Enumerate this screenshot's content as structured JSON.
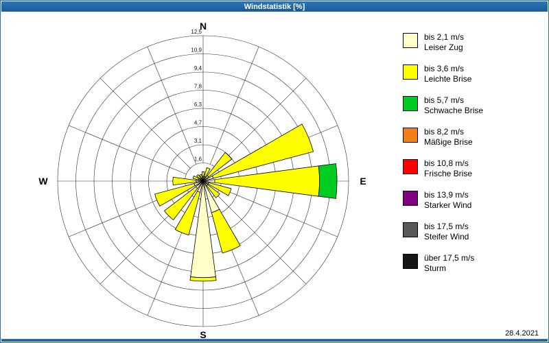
{
  "window": {
    "title": "Windstatistik [%]",
    "date": "28.4.2021"
  },
  "legend": {
    "items": [
      {
        "speed": "bis 2,1 m/s",
        "desc": "Leiser Zug",
        "color": "#ffffc8"
      },
      {
        "speed": "bis 3,6 m/s",
        "desc": "Leichte Brise",
        "color": "#ffff00"
      },
      {
        "speed": "bis 5,7 m/s",
        "desc": "Schwache Brise",
        "color": "#00cc22"
      },
      {
        "speed": "bis 8,2 m/s",
        "desc": "Mäßige Brise",
        "color": "#f08018"
      },
      {
        "speed": "bis 10,8 m/s",
        "desc": "Frische Brise",
        "color": "#ff0000"
      },
      {
        "speed": "bis 13,9 m/s",
        "desc": "Starker Wind",
        "color": "#800080"
      },
      {
        "speed": "bis 17,5 m/s",
        "desc": "Steifer Wind",
        "color": "#585858"
      },
      {
        "speed": "über 17,5 m/s",
        "desc": "Sturm",
        "color": "#161616"
      }
    ]
  },
  "chart_data": {
    "type": "bar",
    "polar": true,
    "title": "Windstatistik [%]",
    "units": "%",
    "rlim": [
      0,
      12.5
    ],
    "rings": [
      1.6,
      3.1,
      4.7,
      6.3,
      7.8,
      9.4,
      10.9,
      12.5
    ],
    "ring_labels": [
      "1,6",
      "3,1",
      "4,7",
      "6,3",
      "7,8",
      "9,4",
      "10,9",
      "12,5"
    ],
    "compass": {
      "n": "N",
      "e": "E",
      "s": "S",
      "w": "W"
    },
    "directions": [
      "N",
      "NNE",
      "NE",
      "ENE",
      "E",
      "ESE",
      "SE",
      "SSE",
      "S",
      "SSW",
      "SW",
      "WSW",
      "W",
      "WNW",
      "NW",
      "NNW"
    ],
    "sector_width_deg": 15,
    "series": [
      {
        "name": "bis 2,1 m/s",
        "color": "#ffffc8",
        "values": [
          0.4,
          0.4,
          0.6,
          0.9,
          1.0,
          0.5,
          0.5,
          2.8,
          8.3,
          1.0,
          0.8,
          0.8,
          0.6,
          0.4,
          0.3,
          0.3
        ]
      },
      {
        "name": "bis 3,6 m/s",
        "color": "#ffff00",
        "values": [
          0.4,
          0.8,
          2.5,
          8.9,
          9.0,
          2.0,
          1.3,
          3.6,
          0.3,
          3.8,
          3.4,
          3.5,
          2.0,
          0.5,
          0.4,
          0.3
        ]
      },
      {
        "name": "bis 5,7 m/s",
        "color": "#00cc22",
        "values": [
          0,
          0,
          0,
          0,
          1.5,
          0,
          0,
          0,
          0,
          0,
          0,
          0,
          0,
          0,
          0,
          0
        ]
      },
      {
        "name": "bis 8,2 m/s",
        "color": "#f08018",
        "values": [
          0,
          0,
          0,
          0,
          0,
          0,
          0,
          0,
          0,
          0,
          0,
          0,
          0,
          0,
          0,
          0
        ]
      },
      {
        "name": "bis 10,8 m/s",
        "color": "#ff0000",
        "values": [
          0,
          0,
          0,
          0,
          0,
          0,
          0,
          0,
          0,
          0,
          0,
          0,
          0,
          0,
          0,
          0
        ]
      },
      {
        "name": "bis 13,9 m/s",
        "color": "#800080",
        "values": [
          0,
          0,
          0,
          0,
          0,
          0,
          0,
          0,
          0,
          0,
          0,
          0,
          0,
          0,
          0,
          0
        ]
      },
      {
        "name": "bis 17,5 m/s",
        "color": "#585858",
        "values": [
          0,
          0,
          0,
          0,
          0,
          0,
          0,
          0,
          0,
          0,
          0,
          0,
          0,
          0,
          0,
          0
        ]
      },
      {
        "name": "über 17,5 m/s",
        "color": "#161616",
        "values": [
          0,
          0,
          0,
          0,
          0,
          0,
          0,
          0,
          0,
          0,
          0,
          0,
          0,
          0,
          0,
          0
        ]
      }
    ]
  }
}
